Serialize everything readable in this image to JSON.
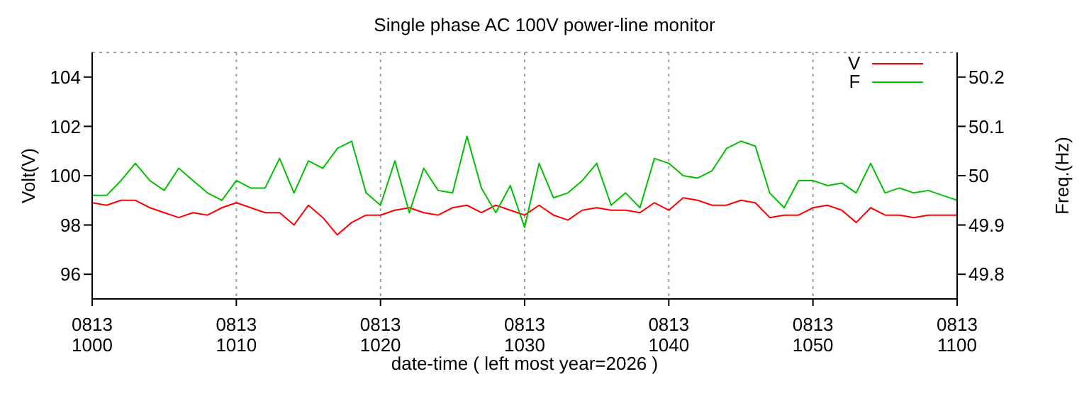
{
  "chart_data": {
    "type": "line",
    "title": "Single phase AC 100V power-line monitor",
    "xlabel": "date-time ( left most year=2026 )",
    "ylabel": "Volt(V)",
    "y2label": "Freq.(Hz)",
    "x": [
      "2026-08-13T10:00",
      "2026-08-13T10:01",
      "2026-08-13T10:02",
      "2026-08-13T10:03",
      "2026-08-13T10:04",
      "2026-08-13T10:05",
      "2026-08-13T10:06",
      "2026-08-13T10:07",
      "2026-08-13T10:08",
      "2026-08-13T10:09",
      "2026-08-13T10:10",
      "2026-08-13T10:11",
      "2026-08-13T10:12",
      "2026-08-13T10:13",
      "2026-08-13T10:14",
      "2026-08-13T10:15",
      "2026-08-13T10:16",
      "2026-08-13T10:17",
      "2026-08-13T10:18",
      "2026-08-13T10:19",
      "2026-08-13T10:20",
      "2026-08-13T10:21",
      "2026-08-13T10:22",
      "2026-08-13T10:23",
      "2026-08-13T10:24",
      "2026-08-13T10:25",
      "2026-08-13T10:26",
      "2026-08-13T10:27",
      "2026-08-13T10:28",
      "2026-08-13T10:29",
      "2026-08-13T10:30",
      "2026-08-13T10:31",
      "2026-08-13T10:32",
      "2026-08-13T10:33",
      "2026-08-13T10:34",
      "2026-08-13T10:35",
      "2026-08-13T10:36",
      "2026-08-13T10:37",
      "2026-08-13T10:38",
      "2026-08-13T10:39",
      "2026-08-13T10:40",
      "2026-08-13T10:41",
      "2026-08-13T10:42",
      "2026-08-13T10:43",
      "2026-08-13T10:44",
      "2026-08-13T10:45",
      "2026-08-13T10:46",
      "2026-08-13T10:47",
      "2026-08-13T10:48",
      "2026-08-13T10:49",
      "2026-08-13T10:50",
      "2026-08-13T10:51",
      "2026-08-13T10:52",
      "2026-08-13T10:53",
      "2026-08-13T10:54",
      "2026-08-13T10:55",
      "2026-08-13T10:56",
      "2026-08-13T10:57",
      "2026-08-13T10:58",
      "2026-08-13T10:59",
      "2026-08-13T11:00"
    ],
    "series": [
      {
        "name": "V",
        "color": "#ff0000",
        "values": [
          98.9,
          98.8,
          99.0,
          99.0,
          98.7,
          98.5,
          98.3,
          98.5,
          98.4,
          98.7,
          98.9,
          98.7,
          98.5,
          98.5,
          98.0,
          98.8,
          98.3,
          97.6,
          98.1,
          98.4,
          98.4,
          98.6,
          98.7,
          98.5,
          98.4,
          98.7,
          98.8,
          98.5,
          98.8,
          98.6,
          98.4,
          98.8,
          98.4,
          98.2,
          98.6,
          98.7,
          98.6,
          98.6,
          98.5,
          98.9,
          98.6,
          99.1,
          99.0,
          98.8,
          98.8,
          99.0,
          98.9,
          98.3,
          98.4,
          98.4,
          98.7,
          98.8,
          98.6,
          98.1,
          98.7,
          98.4,
          98.4,
          98.3,
          98.4,
          98.4,
          98.4
        ]
      },
      {
        "name": "F",
        "color": "#00c000",
        "axis": "y2",
        "values": [
          49.96,
          49.96,
          49.99,
          50.025,
          49.99,
          49.97,
          50.015,
          49.99,
          49.965,
          49.95,
          49.99,
          49.975,
          49.975,
          50.035,
          49.965,
          50.03,
          50.015,
          50.055,
          50.07,
          49.965,
          49.94,
          50.03,
          49.925,
          50.015,
          49.97,
          49.965,
          50.08,
          49.975,
          49.925,
          49.98,
          49.895,
          50.025,
          49.955,
          49.965,
          49.99,
          50.025,
          49.94,
          49.965,
          49.935,
          50.035,
          50.025,
          50.0,
          49.995,
          50.01,
          50.055,
          50.07,
          50.06,
          49.965,
          49.935,
          49.99,
          49.99,
          49.98,
          49.985,
          49.965,
          50.025,
          49.965,
          49.975,
          49.965,
          49.97,
          49.96,
          49.95
        ]
      }
    ],
    "xlim": [
      "2026-08-13T10:00",
      "2026-08-13T11:00"
    ],
    "xticks": [
      {
        "value": "2026-08-13T10:00",
        "label": "0813\n1000"
      },
      {
        "value": "2026-08-13T10:10",
        "label": "0813\n1010"
      },
      {
        "value": "2026-08-13T10:20",
        "label": "0813\n1020"
      },
      {
        "value": "2026-08-13T10:30",
        "label": "0813\n1030"
      },
      {
        "value": "2026-08-13T10:40",
        "label": "0813\n1040"
      },
      {
        "value": "2026-08-13T10:50",
        "label": "0813\n1050"
      },
      {
        "value": "2026-08-13T11:00",
        "label": "0813\n1100"
      }
    ],
    "ylim": [
      95,
      105
    ],
    "yticks": [
      96,
      98,
      100,
      102,
      104
    ],
    "y2lim": [
      49.75,
      50.25
    ],
    "y2ticks": [
      49.8,
      49.9,
      50,
      50.1,
      50.2
    ],
    "grid": true,
    "legend": "top right",
    "marker": "none",
    "line_style": "solid"
  }
}
